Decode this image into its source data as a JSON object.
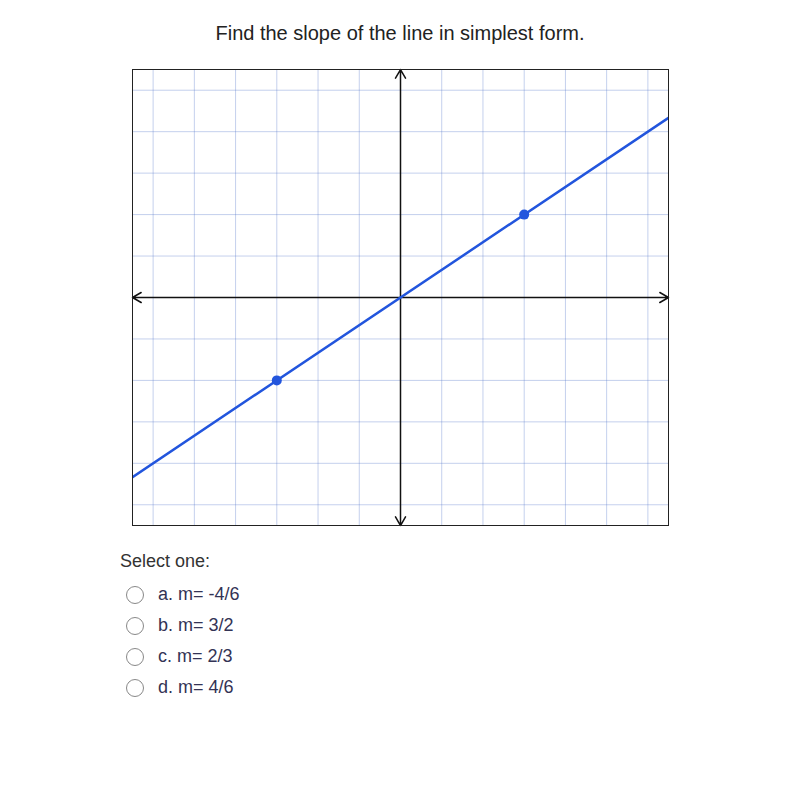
{
  "chart_data": {
    "type": "line",
    "title": "Find the slope of the line in simplest form.",
    "annotations": [
      "Select one:",
      "a. m= -4/6",
      "b. m= 3/2",
      "c. m= 2/3",
      "d. m= 4/6"
    ],
    "x": [
      -3,
      3
    ],
    "values": [
      -2,
      2
    ],
    "color": "#2255dd",
    "marker": "o",
    "xlim": [
      -6.5,
      6.5
    ],
    "ylim": [
      -5.5,
      5.5
    ],
    "xticks": [
      -6,
      -5,
      -4,
      -3,
      -2,
      -1,
      0,
      1,
      2,
      3,
      4,
      5,
      6
    ],
    "yticks": [
      -5,
      -4,
      -3,
      -2,
      -1,
      0,
      1,
      2,
      3,
      4,
      5
    ],
    "grid": true,
    "tick_labels": false
  }
}
